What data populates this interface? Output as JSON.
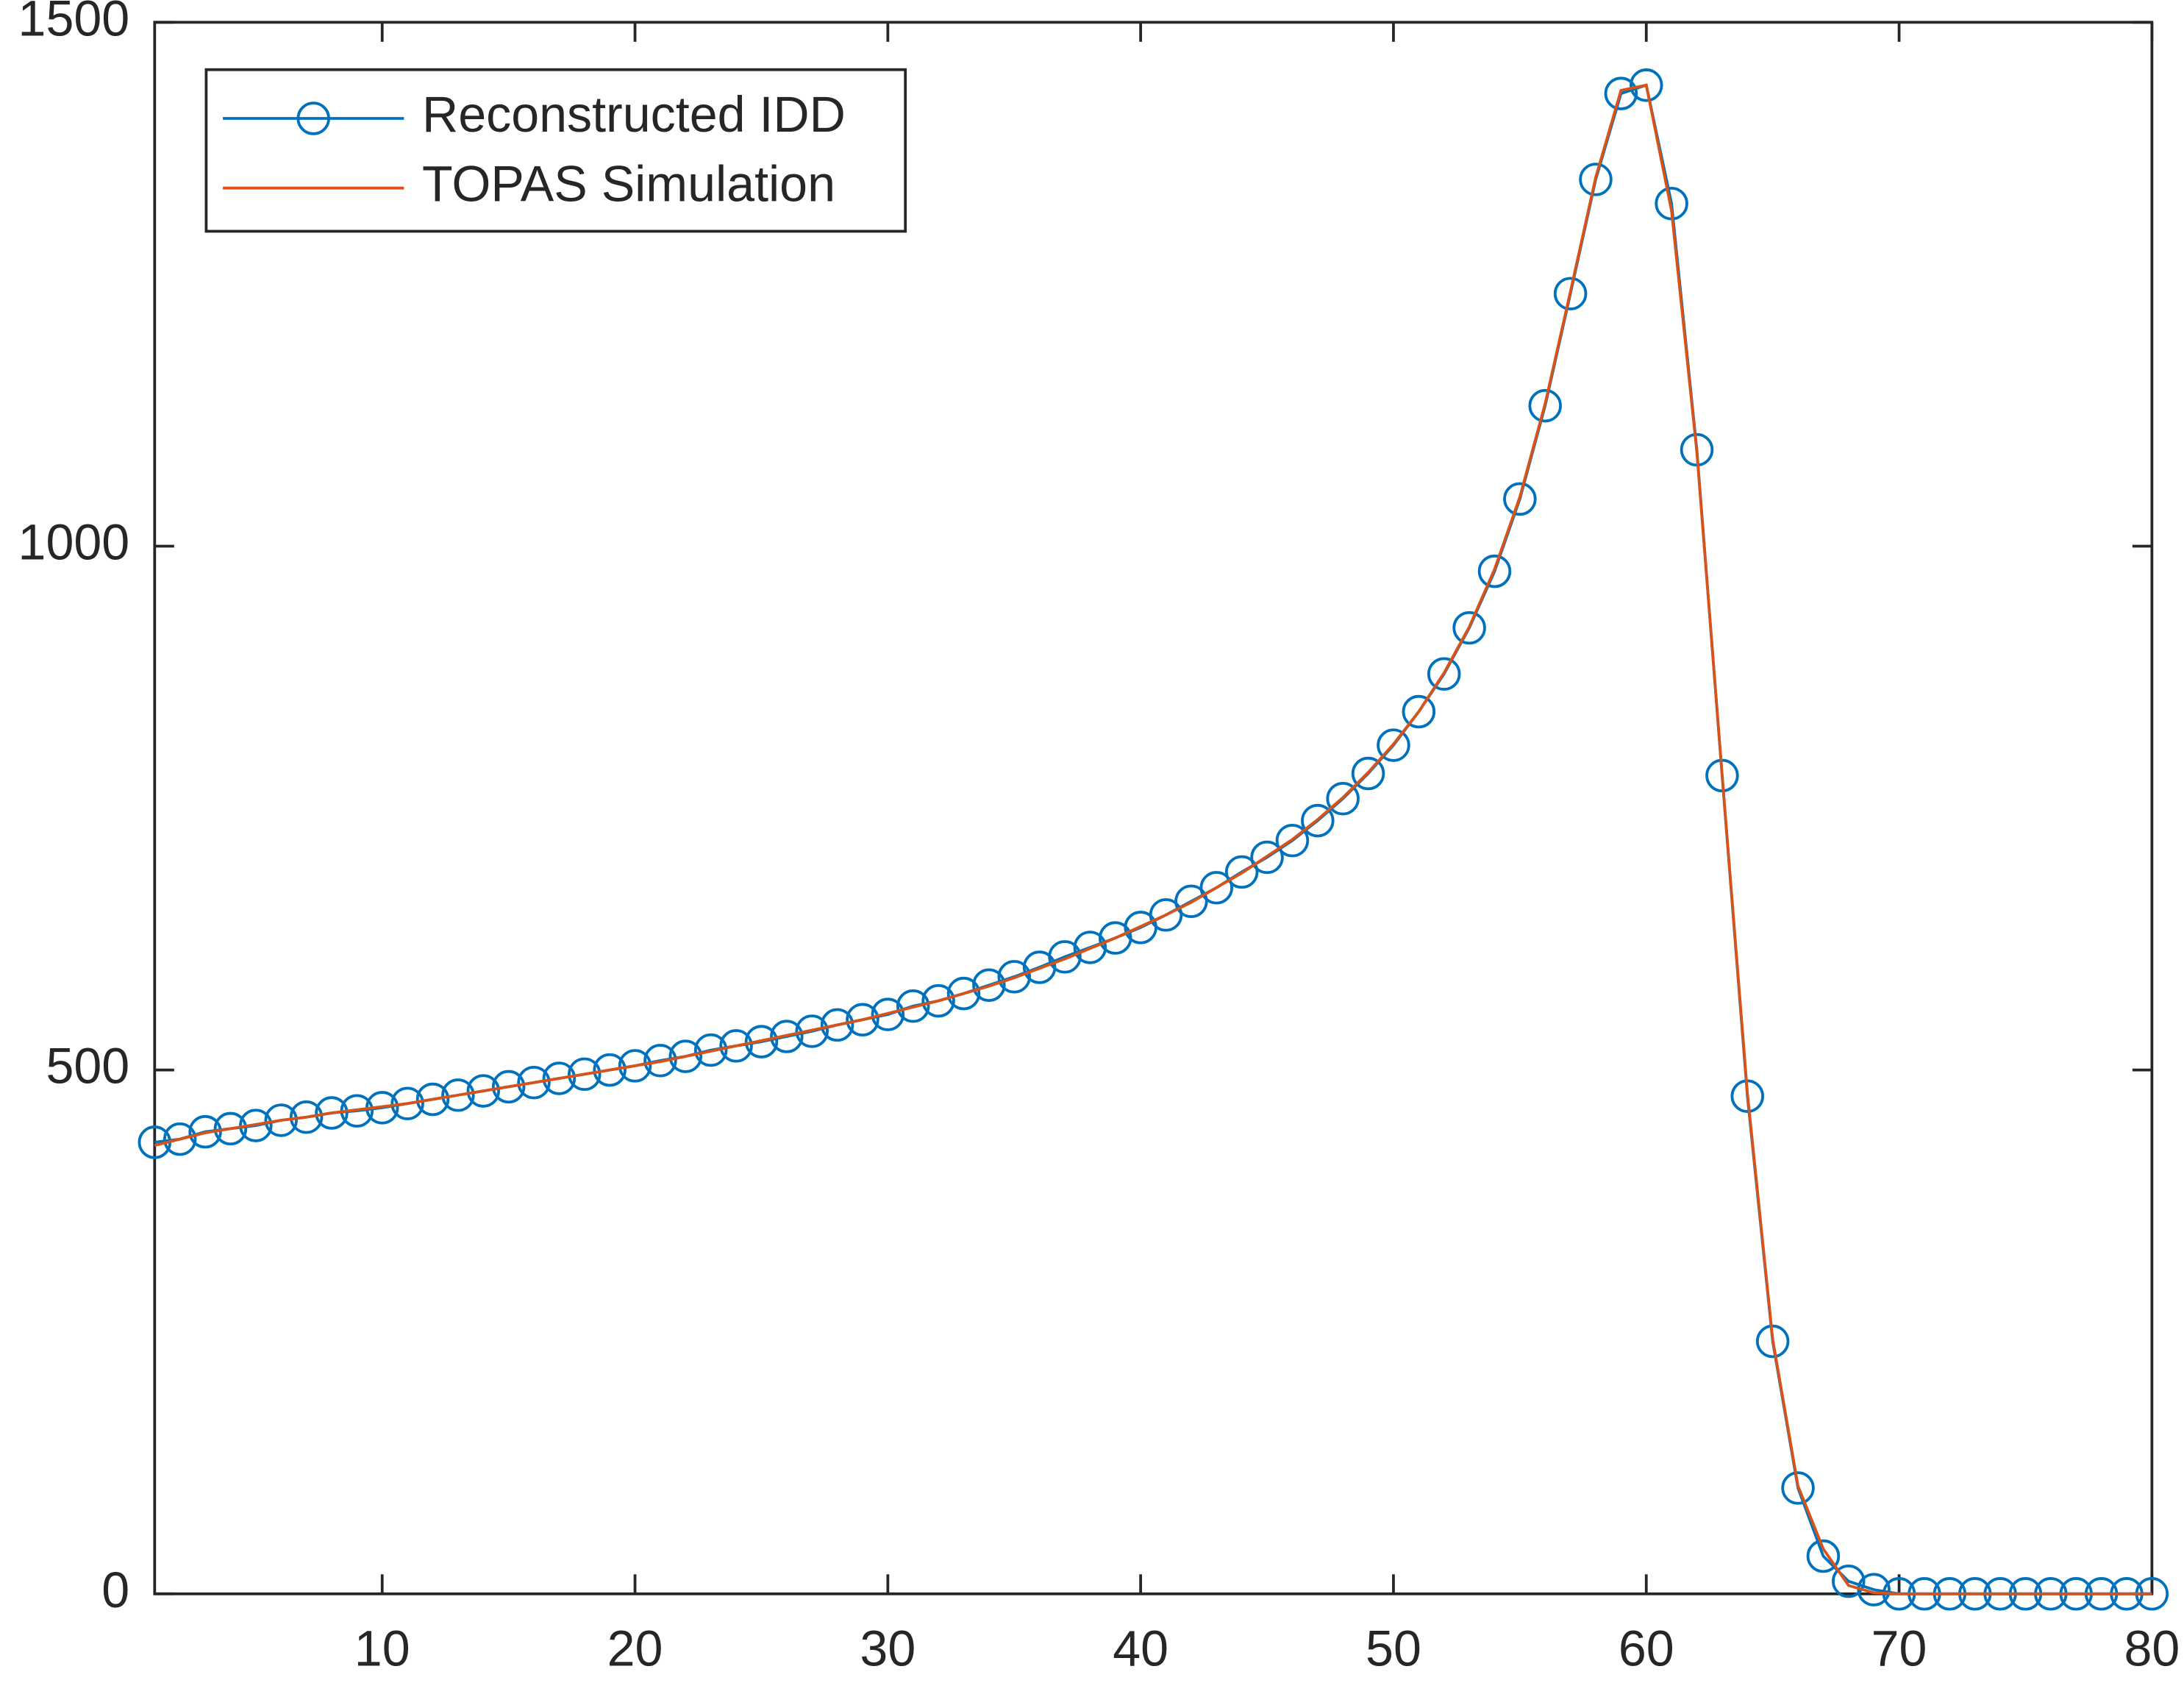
{
  "chart_data": {
    "type": "line",
    "x": [
      1,
      2,
      3,
      4,
      5,
      6,
      7,
      8,
      9,
      10,
      11,
      12,
      13,
      14,
      15,
      16,
      17,
      18,
      19,
      20,
      21,
      22,
      23,
      24,
      25,
      26,
      27,
      28,
      29,
      30,
      31,
      32,
      33,
      34,
      35,
      36,
      37,
      38,
      39,
      40,
      41,
      42,
      43,
      44,
      45,
      46,
      47,
      48,
      49,
      50,
      51,
      52,
      53,
      54,
      55,
      56,
      57,
      58,
      59,
      60,
      61,
      62,
      63,
      64,
      65,
      66,
      67,
      68,
      69,
      70,
      71,
      72,
      73,
      74,
      75,
      76,
      77,
      78,
      79,
      80
    ],
    "series": [
      {
        "name": "Reconstructed IDD",
        "color": "#0072bd",
        "marker": "circle",
        "values": [
          431,
          434,
          441,
          444,
          447,
          452,
          455,
          459,
          461,
          464,
          468,
          472,
          476,
          480,
          484,
          488,
          492,
          496,
          500,
          504,
          509,
          513,
          519,
          523,
          527,
          532,
          537,
          543,
          548,
          553,
          561,
          566,
          573,
          581,
          589,
          598,
          608,
          617,
          626,
          636,
          648,
          661,
          674,
          689,
          703,
          719,
          738,
          759,
          783,
          810,
          842,
          878,
          922,
          976,
          1045,
          1134,
          1241,
          1350,
          1432,
          1440,
          1327,
          1092,
          781,
          475,
          241,
          101,
          36,
          12,
          4,
          0,
          0,
          0,
          0,
          0,
          0,
          0,
          0,
          0,
          0,
          0
        ]
      },
      {
        "name": "TOPAS Simulation",
        "color": "#d95319",
        "marker": "none",
        "values": [
          428,
          434,
          440,
          444,
          448,
          452,
          455,
          459,
          462,
          465,
          468,
          472,
          476,
          480,
          484,
          488,
          492,
          496,
          500,
          504,
          508,
          513,
          518,
          523,
          528,
          533,
          538,
          543,
          548,
          554,
          560,
          566,
          573,
          580,
          588,
          597,
          606,
          616,
          626,
          637,
          648,
          660,
          674,
          688,
          704,
          720,
          739,
          760,
          784,
          811,
          842,
          879,
          923,
          978,
          1047,
          1136,
          1243,
          1352,
          1435,
          1440,
          1320,
          1090,
          782,
          478,
          243,
          103,
          43,
          8,
          1,
          0,
          0,
          0,
          0,
          0,
          0,
          0,
          0,
          0,
          0,
          0
        ]
      }
    ],
    "xlim": [
      1,
      80
    ],
    "xticks": [
      10,
      20,
      30,
      40,
      50,
      60,
      70,
      80
    ],
    "ylim": [
      0,
      1500
    ],
    "yticks": [
      0,
      500,
      1000,
      1500
    ],
    "legend": "upper-left",
    "grid": false
  }
}
